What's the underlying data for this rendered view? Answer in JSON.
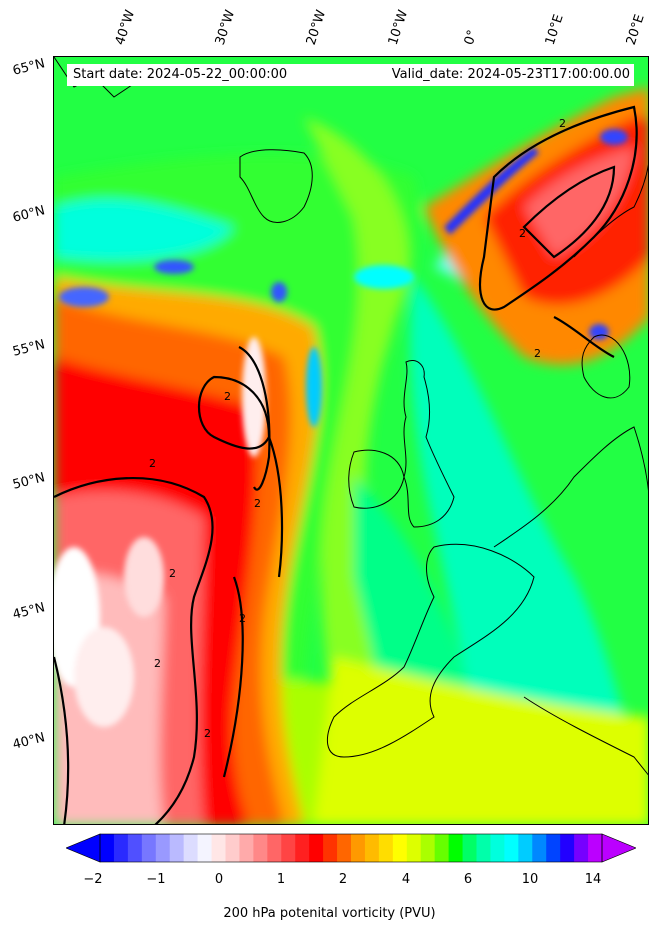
{
  "map": {
    "start_date": "Start date: 2024-05-22_00:00:00",
    "valid_date": "Valid_date: 2024-05-23T17:00:00.00",
    "lon_labels": [
      "40°W",
      "30°W",
      "20°W",
      "10°W",
      "0°",
      "10°E",
      "20°E"
    ],
    "lat_labels": [
      "65°N",
      "60°N",
      "55°N",
      "50°N",
      "45°N",
      "40°N"
    ],
    "contour_label": "2"
  },
  "colorbar": {
    "label": "200 hPa potenital vorticity (PVU)",
    "ticks": [
      "−2",
      "−1",
      "0",
      "1",
      "2",
      "4",
      "6",
      "10",
      "14"
    ],
    "colors": [
      "#0000ff",
      "#2a2aff",
      "#5050ff",
      "#7777ff",
      "#9999ff",
      "#babaff",
      "#dcdcff",
      "#f4f4ff",
      "#ffe6e6",
      "#ffcccc",
      "#ffaaaa",
      "#ff8888",
      "#ff6666",
      "#ff4444",
      "#ff2020",
      "#ff0000",
      "#ff3300",
      "#ff6600",
      "#ff9900",
      "#ffbb00",
      "#ffdd00",
      "#ffff00",
      "#ddff00",
      "#aaff00",
      "#66ff00",
      "#00ff00",
      "#00ff66",
      "#00ffaa",
      "#00ffdd",
      "#00ffff",
      "#00ccff",
      "#0088ff",
      "#0044ff",
      "#2200ff",
      "#7700ff",
      "#bb00ff"
    ]
  }
}
